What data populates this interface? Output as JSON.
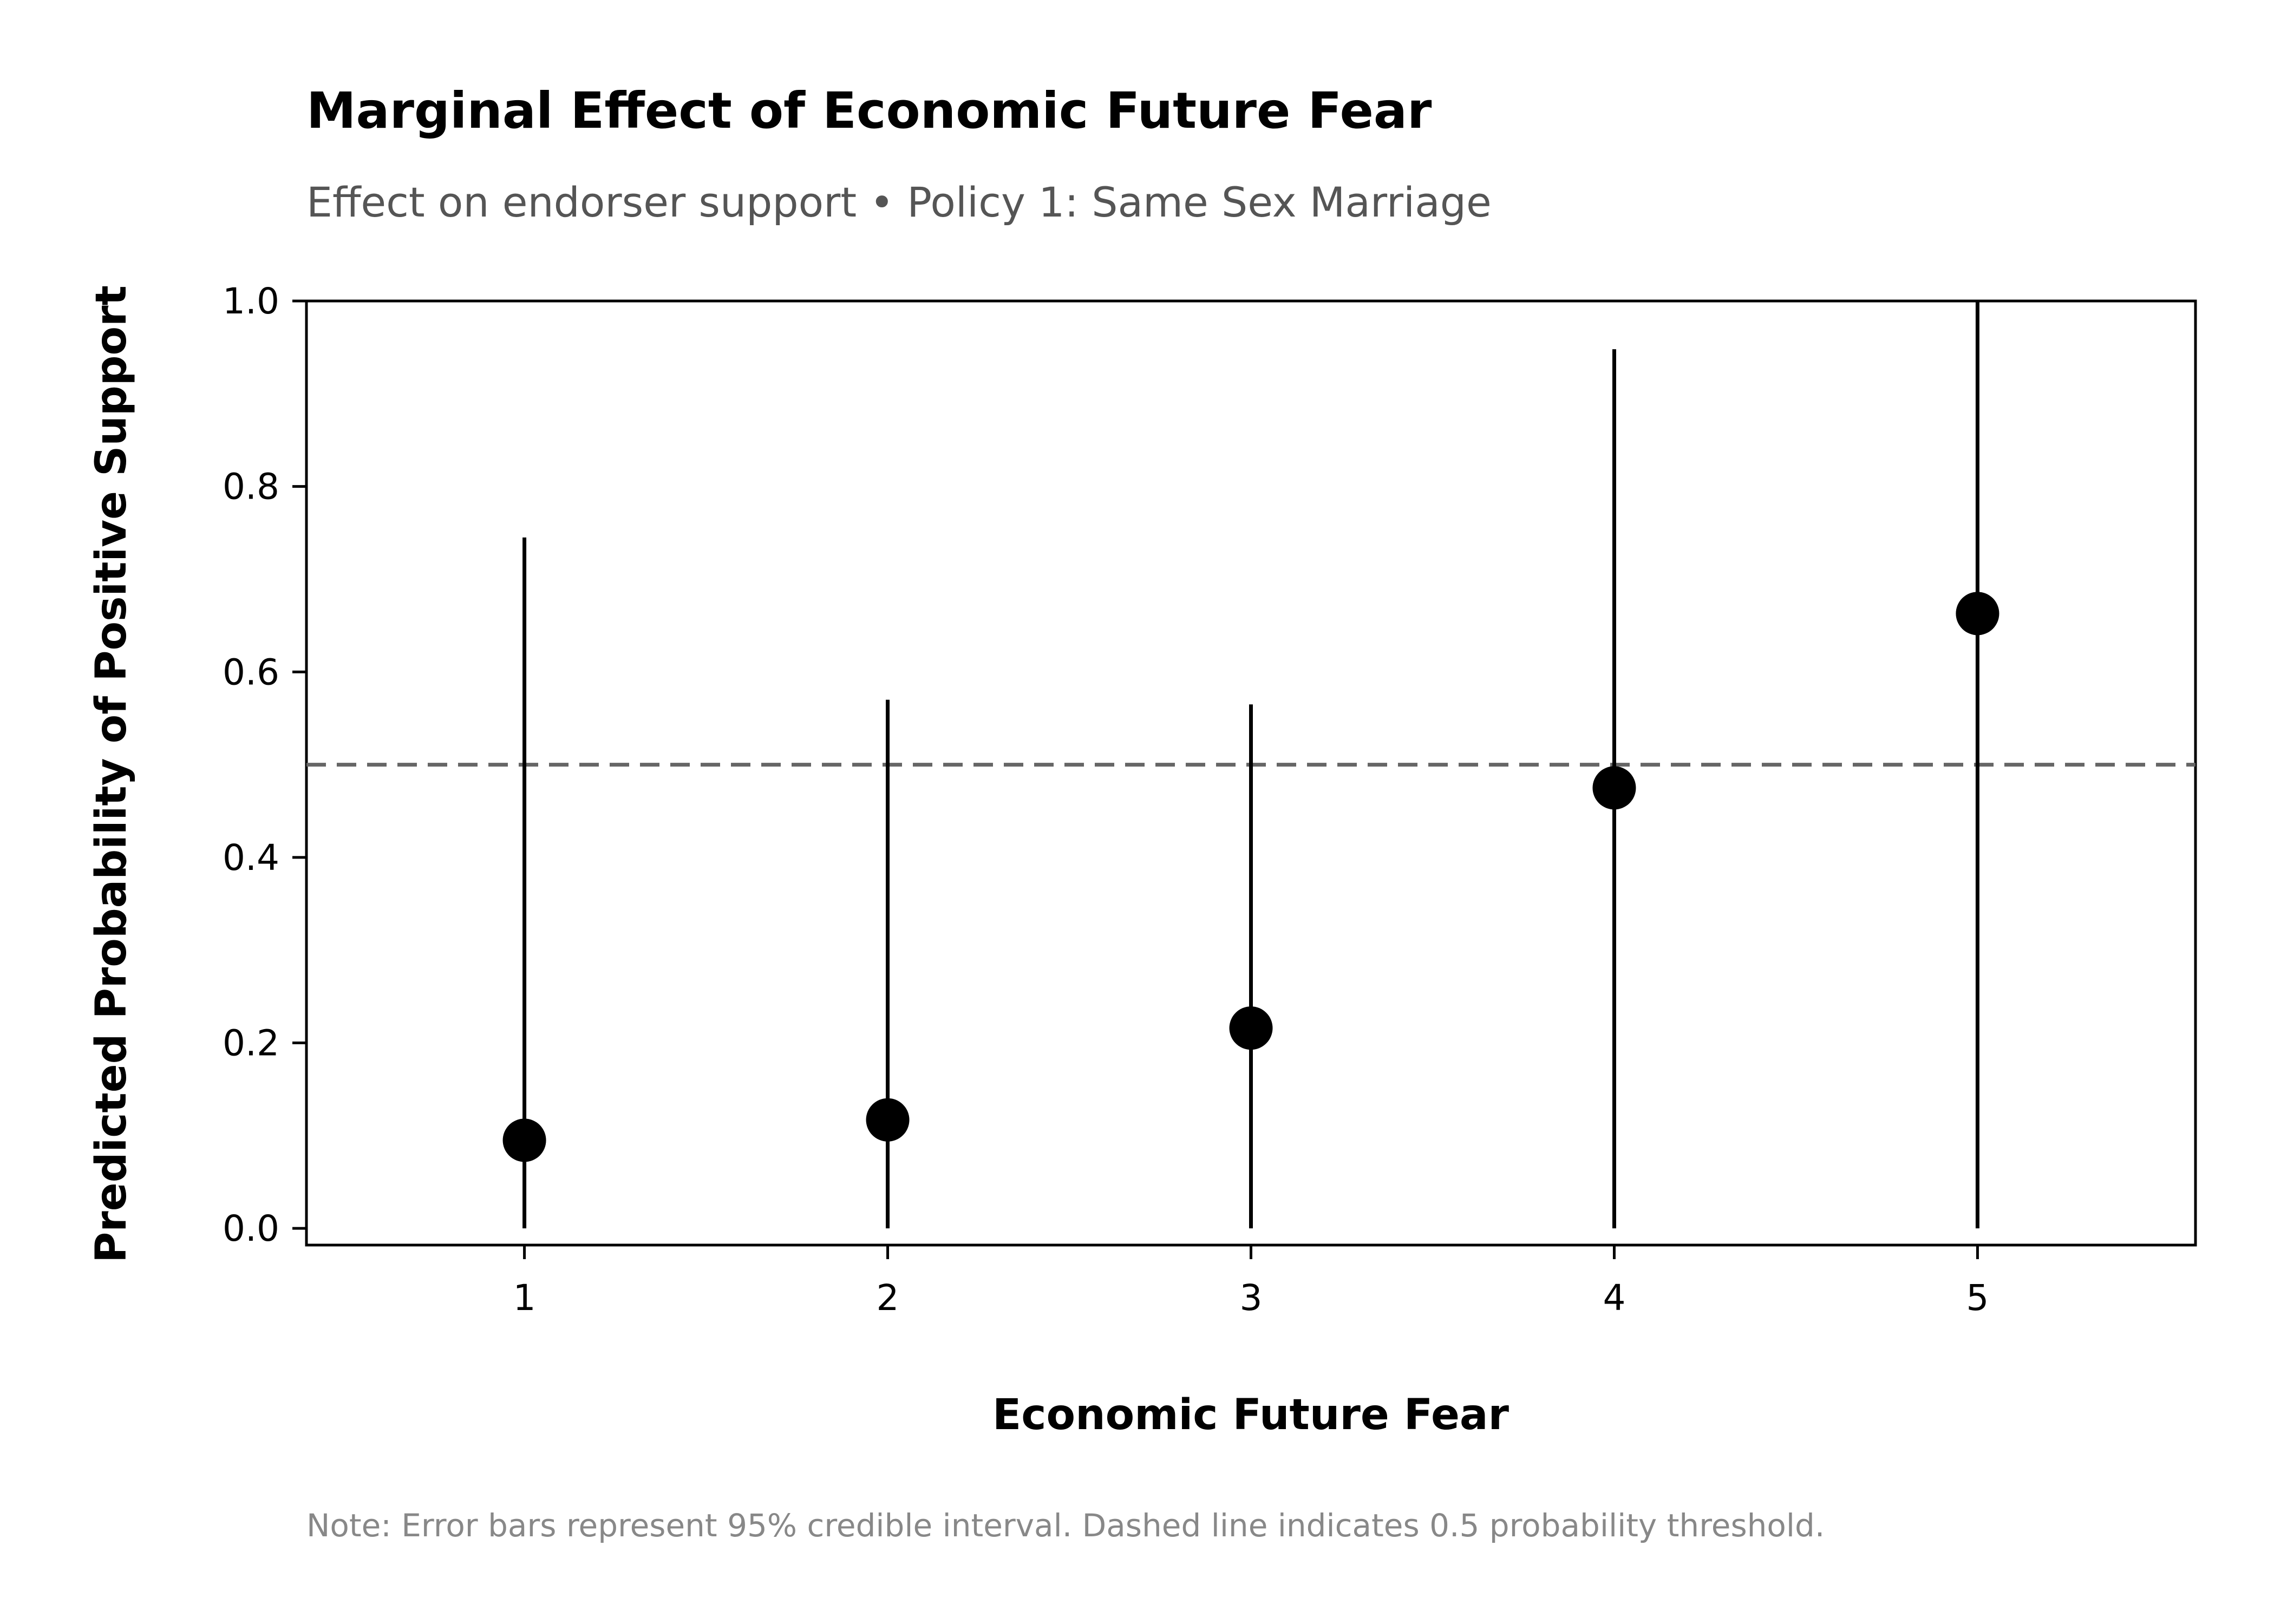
{
  "chart_data": {
    "type": "scatter",
    "title": "Marginal Effect of Economic Future Fear",
    "subtitle": "Effect on endorser support • Policy 1: Same Sex Marriage",
    "xlabel": "Economic Future Fear",
    "ylabel": "Predicted Probability of Positive Support",
    "note": "Note: Error bars represent 95% credible interval. Dashed line indicates 0.5 probability threshold.",
    "xlim": [
      0.4,
      5.6
    ],
    "ylim": [
      -0.018,
      1.0
    ],
    "x_ticks": [
      1,
      2,
      3,
      4,
      5
    ],
    "x_tick_labels": [
      "1",
      "2",
      "3",
      "4",
      "5"
    ],
    "y_ticks": [
      0.0,
      0.2,
      0.4,
      0.6,
      0.8,
      1.0
    ],
    "y_tick_labels": [
      "0.0",
      "0.2",
      "0.4",
      "0.6",
      "0.8",
      "1.0"
    ],
    "grid": false,
    "reference_line": {
      "y": 0.5,
      "style": "dashed",
      "color": "#666666"
    },
    "points": [
      {
        "x": 1,
        "y": 0.095,
        "lower": 0.0,
        "upper": 0.745
      },
      {
        "x": 2,
        "y": 0.117,
        "lower": 0.0,
        "upper": 0.57
      },
      {
        "x": 3,
        "y": 0.216,
        "lower": 0.0,
        "upper": 0.565
      },
      {
        "x": 4,
        "y": 0.475,
        "lower": 0.0,
        "upper": 0.948
      },
      {
        "x": 5,
        "y": 0.663,
        "lower": 0.0,
        "upper": 1.0
      }
    ],
    "colors": {
      "point": "#000000",
      "errorbar": "#000000",
      "axis": "#000000"
    }
  }
}
